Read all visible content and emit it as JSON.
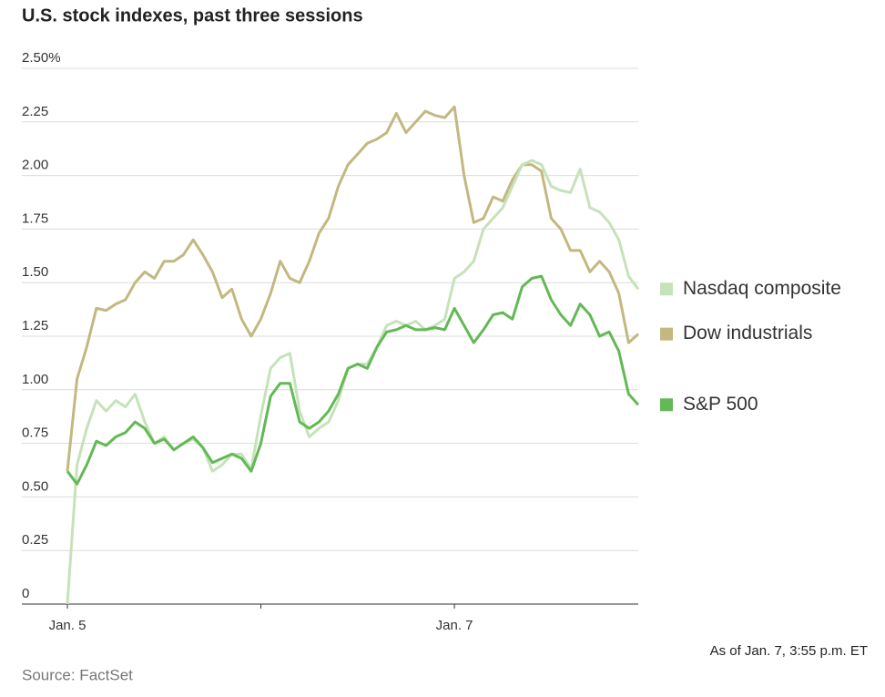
{
  "chart_data": {
    "type": "line",
    "title": "U.S. stock indexes, past three sessions",
    "note": "As of Jan. 7, 3:55 p.m. ET",
    "source": "Source: FactSet",
    "categories": [
      "Jan. 5",
      null,
      null,
      null,
      null,
      null,
      null,
      null,
      null,
      null,
      null,
      null,
      null,
      null,
      null,
      null,
      null,
      null,
      null,
      null,
      null,
      null,
      null,
      null,
      null,
      null,
      null,
      null,
      null,
      null,
      null,
      null,
      null,
      null,
      null,
      null,
      null,
      null,
      null,
      null,
      "Jan. 7",
      null,
      null,
      null,
      null,
      null,
      null,
      null,
      null,
      null,
      null,
      null,
      null,
      null,
      null,
      null,
      null,
      null,
      null,
      null
    ],
    "series": [
      {
        "name": "Nasdaq composite",
        "color": "#c6e2ba",
        "values": [
          0.0,
          0.65,
          0.82,
          0.95,
          0.9,
          0.95,
          0.92,
          0.98,
          0.85,
          0.75,
          0.78,
          0.72,
          0.75,
          0.77,
          0.73,
          0.62,
          0.65,
          0.7,
          0.7,
          0.63,
          0.88,
          1.1,
          1.15,
          1.17,
          0.9,
          0.78,
          0.82,
          0.85,
          0.95,
          1.1,
          1.12,
          1.12,
          1.2,
          1.3,
          1.32,
          1.3,
          1.32,
          1.28,
          1.3,
          1.33,
          1.52,
          1.55,
          1.6,
          1.75,
          1.8,
          1.85,
          1.95,
          2.05,
          2.07,
          2.05,
          1.95,
          1.93,
          1.92,
          2.03,
          1.85,
          1.83,
          1.78,
          1.7,
          1.53,
          1.47
        ]
      },
      {
        "name": "Dow industrials",
        "color": "#c2b880",
        "values": [
          0.62,
          1.05,
          1.2,
          1.38,
          1.37,
          1.4,
          1.42,
          1.5,
          1.55,
          1.52,
          1.6,
          1.6,
          1.63,
          1.7,
          1.63,
          1.55,
          1.43,
          1.47,
          1.33,
          1.25,
          1.33,
          1.45,
          1.6,
          1.52,
          1.5,
          1.6,
          1.73,
          1.8,
          1.95,
          2.05,
          2.1,
          2.15,
          2.17,
          2.2,
          2.29,
          2.2,
          2.25,
          2.3,
          2.28,
          2.27,
          2.32,
          2.0,
          1.78,
          1.8,
          1.9,
          1.88,
          1.98,
          2.05,
          2.05,
          2.02,
          1.8,
          1.75,
          1.65,
          1.65,
          1.55,
          1.6,
          1.55,
          1.45,
          1.22,
          1.26
        ]
      },
      {
        "name": "S&P 500",
        "color": "#62b955",
        "values": [
          0.62,
          0.56,
          0.65,
          0.76,
          0.74,
          0.78,
          0.8,
          0.85,
          0.82,
          0.75,
          0.77,
          0.72,
          0.75,
          0.78,
          0.73,
          0.66,
          0.68,
          0.7,
          0.68,
          0.62,
          0.75,
          0.97,
          1.03,
          1.03,
          0.85,
          0.82,
          0.85,
          0.9,
          0.98,
          1.1,
          1.12,
          1.1,
          1.2,
          1.27,
          1.28,
          1.3,
          1.28,
          1.28,
          1.29,
          1.28,
          1.38,
          1.3,
          1.22,
          1.28,
          1.35,
          1.36,
          1.33,
          1.48,
          1.52,
          1.53,
          1.42,
          1.35,
          1.3,
          1.4,
          1.35,
          1.25,
          1.27,
          1.18,
          0.98,
          0.93
        ]
      }
    ],
    "ylim": [
      0,
      2.5
    ],
    "yticks": [
      0,
      {
        "value": 0.25,
        "label": "0.25"
      },
      {
        "value": 0.5,
        "label": "0.50"
      },
      {
        "value": 0.75,
        "label": "0.75"
      },
      {
        "value": 1,
        "label": "1.00"
      },
      {
        "value": 1.25,
        "label": "1.25"
      },
      {
        "value": 1.5,
        "label": "1.50"
      },
      {
        "value": 1.75,
        "label": "1.75"
      },
      {
        "value": 2,
        "label": "2.00"
      },
      {
        "value": 2.25,
        "label": "2.25"
      },
      {
        "value": 2.5,
        "label": "2.50%"
      }
    ],
    "grid": true
  }
}
